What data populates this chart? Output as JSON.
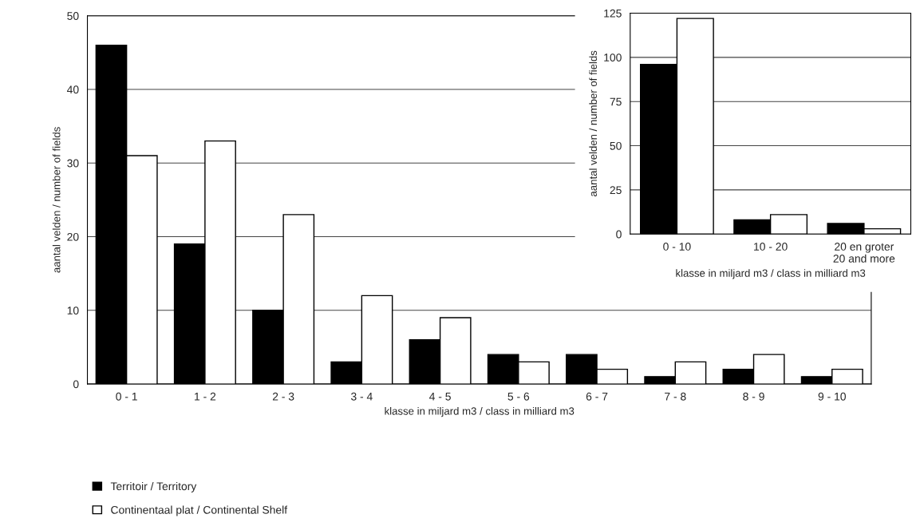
{
  "chart_data": [
    {
      "type": "bar",
      "categories": [
        "0 - 1",
        "1 - 2",
        "2 - 3",
        "3 - 4",
        "4 - 5",
        "5 - 6",
        "6 - 7",
        "7 - 8",
        "8 - 9",
        "9 - 10"
      ],
      "series": [
        {
          "name": "Territoir / Territory",
          "color": "#000000",
          "values": [
            46,
            19,
            10,
            3,
            6,
            4,
            4,
            1,
            2,
            1
          ]
        },
        {
          "name": "Continentaal plat / Continental Shelf",
          "color": "#ffffff",
          "values": [
            31,
            33,
            23,
            12,
            9,
            3,
            2,
            3,
            4,
            2
          ]
        }
      ],
      "xlabel": "klasse in miljard m3 / class in milliard m3",
      "ylabel": "aantal velden / number of fields",
      "ylim": [
        0,
        50
      ],
      "yticks": [
        0,
        10,
        20,
        30,
        40,
        50
      ],
      "grid": "y",
      "legend": "bottom left"
    },
    {
      "type": "bar",
      "categories": [
        "0 - 10",
        "10 - 20",
        "20 en groter\n20 and more"
      ],
      "series": [
        {
          "color": "#000000",
          "values": [
            96,
            8,
            6
          ]
        },
        {
          "color": "#ffffff",
          "values": [
            122,
            11,
            3
          ]
        }
      ],
      "xlabel": "klasse in miljard m3 / class in milliard m3",
      "ylabel": "aantal velden / number of fields",
      "ylim": [
        0,
        125
      ],
      "yticks": [
        0,
        25,
        50,
        75,
        100,
        125
      ],
      "grid": "y"
    }
  ]
}
